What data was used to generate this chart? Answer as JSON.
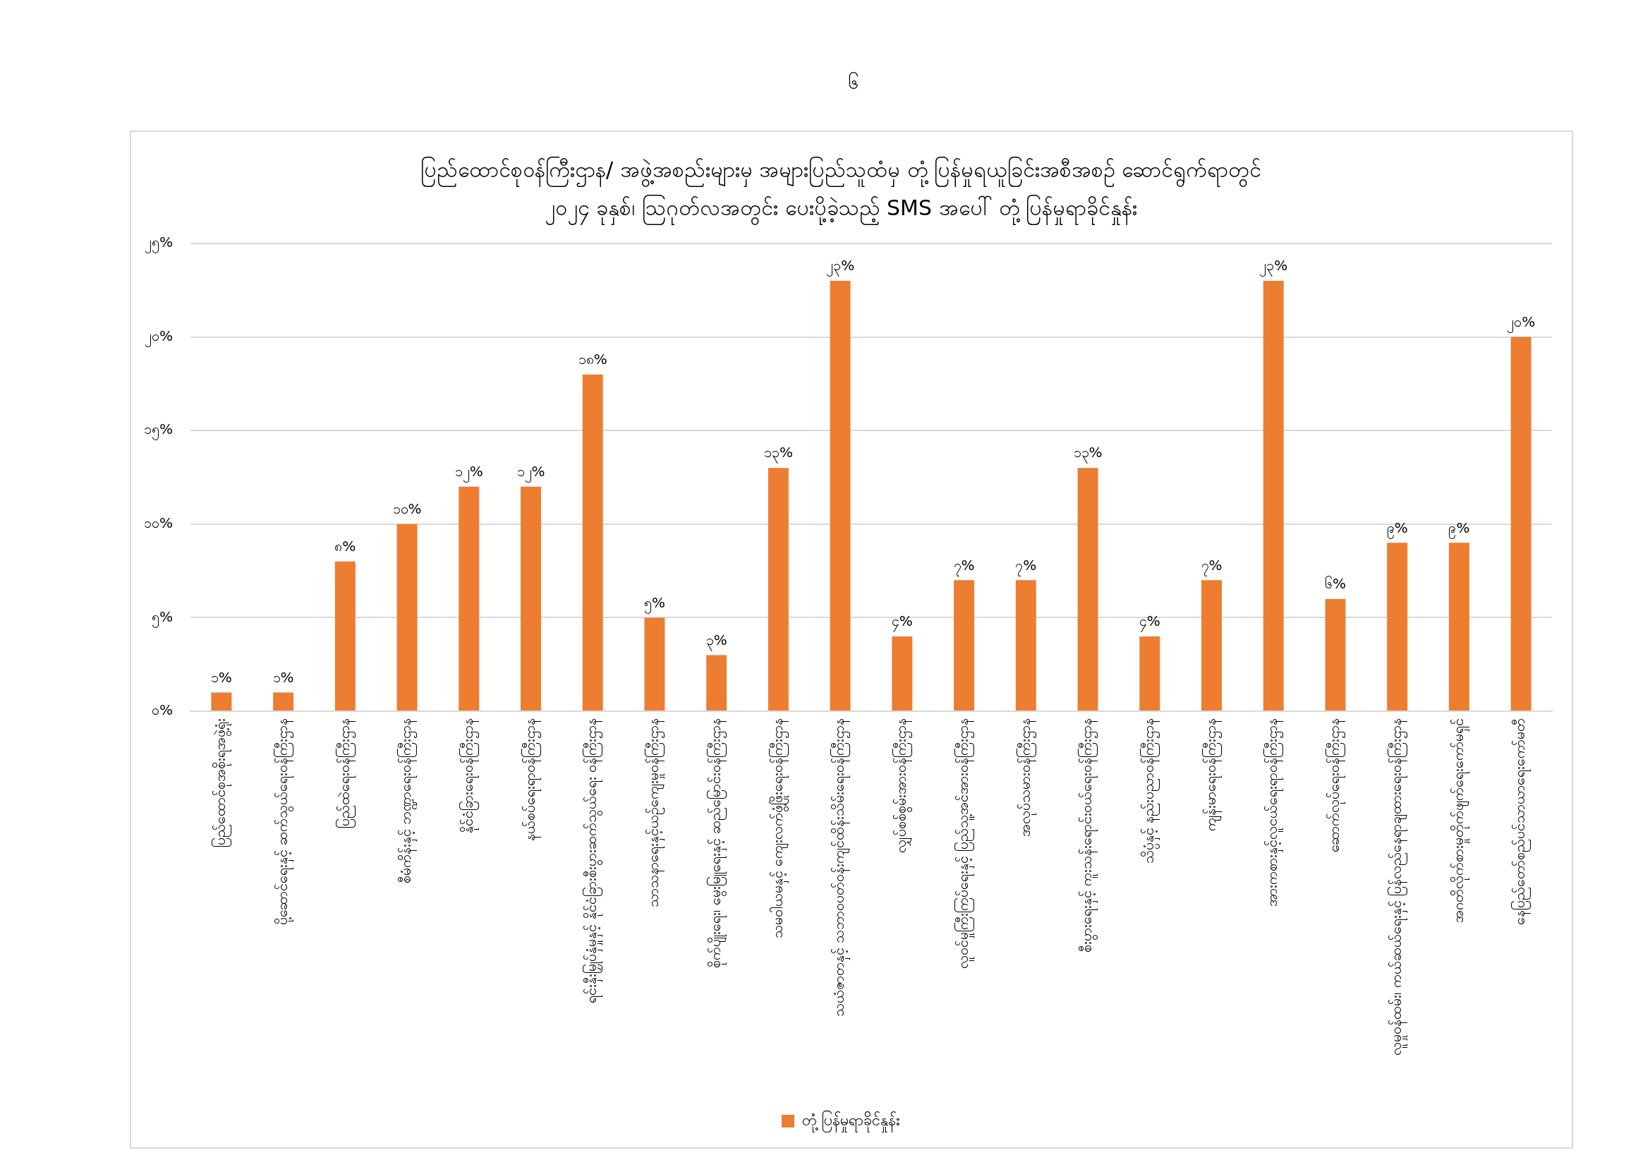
{
  "chart_data": {
    "type": "bar",
    "title": "ပြည်ထောင်စုဝန်ကြီးဌာန/ အဖွဲ့အစည်းများမှ အများပြည်သူထံမှ တုံ့ပြန်မှုရယူခြင်းအစီအစဉ် ဆောင်ရွက်ရာတွင်\n၂၀၂၄ ခုနှစ်၊ ဩဂုတ်လအတွင်း ပေးပို့ခဲ့သည့် SMS အပေါ် တုံ့ပြန်မှုရာခိုင်နှုန်း",
    "categories": [
      "ပြည်ထောင်စုအစိုးရအဖွဲ့ရုံး",
      "ပို့ဆောင်ရေးနှင့် ဆက်သွယ်ရေးဝန်ကြီးဌာန",
      "ပြည်ထဲရေးဝန်ကြီးဌာန",
      "စီမံကိန်းနှင့် ဘဏ္ဍာရေးဝန်ကြီးဌာန",
      "နိုင်ငံခြားရေးဝန်ကြီးဌာန",
      "နယ်စပ်ရေးရာဝန်ကြီးဌာန",
      "ရင်းနှီးမြှုပ်နှံမှုနှင့် နိုင်ငံခြားစီးပွားဆက်သွယ်ရေး ဝန်ကြီးဌာန",
      "သာသနာရေးနှင့်ယဉ်ကျေးမှုဝန်ကြီးဌာန",
      "စိုက်ပျိုးရေး၊ မွေးမြူရေးနှင့် ဆည်မြောင်းဝန်ကြီးဌာန",
      "သမဝါယမနှင့် ကျေးလက်ဖွံ့ဖြိုးရေးဝန်ကြီးဌာန",
      "သယံဇာတနှင့် သဘာဝပတ်ဝန်းကျင်ထိန်းသိမ်းရေးဝန်ကြီးဌာန",
      "လျှပ်စစ်စွမ်းအားဝန်ကြီးဌာန",
      "လူဝင်မှုကြီးကြပ်ရေးနှင့် ပြည်သူ့အင်အားဝန်ကြီးဌာန",
      "အလုပ်သမားဝန်ကြီးဌာန",
      "စီးပွားရေးနှင့် ကူးသန်းရောင်းဝယ်ရေးဝန်ကြီးဌာန",
      "သိပ္ပံနှင့် နည်းပညာဝန်ကြီးဌာန",
      "ကျန်းမာရေးဝန်ကြီးဌာန",
      "အားကစားနှင့်လူငယ်ရေးရာဝန်ကြီးဌာန",
      "ဆောက်လုပ်ရေးဝန်ကြီးဌာန",
      "လူမှုဝန်ထမ်း၊ ကယ်ဆယ်ရေးနှင့် ပြန်လည်နေရာချထားရေးဝန်ကြီးဌာန",
      "အဂတိလိုက်စားမှုတိုက်ဖျက်ရေးကော်မရှင်",
      "နေပြည်တော်စည်ပင်သာယာရေးကော်မတီ"
    ],
    "series": [
      {
        "name": "တုံ့ပြန်မှုရာခိုင်နှုန်း",
        "color": "#ed7d31",
        "values": [
          1,
          1,
          8,
          10,
          12,
          12,
          18,
          5,
          3,
          13,
          23,
          4,
          7,
          7,
          13,
          4,
          7,
          23,
          6,
          9,
          9,
          20
        ],
        "value_labels": [
          "၁%",
          "၁%",
          "၈%",
          "၁၀%",
          "၁၂%",
          "၁၂%",
          "၁၈%",
          "၅%",
          "၃%",
          "၁၃%",
          "၂၃%",
          "၄%",
          "၇%",
          "၇%",
          "၁၃%",
          "၄%",
          "၇%",
          "၂၃%",
          "၆%",
          "၉%",
          "၉%",
          "၂၀%"
        ]
      }
    ],
    "ylim": [
      0,
      25
    ],
    "yticks": [
      {
        "value": 0,
        "label": "၀%"
      },
      {
        "value": 5,
        "label": "၅%"
      },
      {
        "value": 10,
        "label": "၁၀%"
      },
      {
        "value": 15,
        "label": "၁၅%"
      },
      {
        "value": 20,
        "label": "၂၀%"
      },
      {
        "value": 25,
        "label": "၂၅%"
      }
    ],
    "grid": "y",
    "legend": "bottom",
    "annotations": [
      "၆"
    ]
  }
}
